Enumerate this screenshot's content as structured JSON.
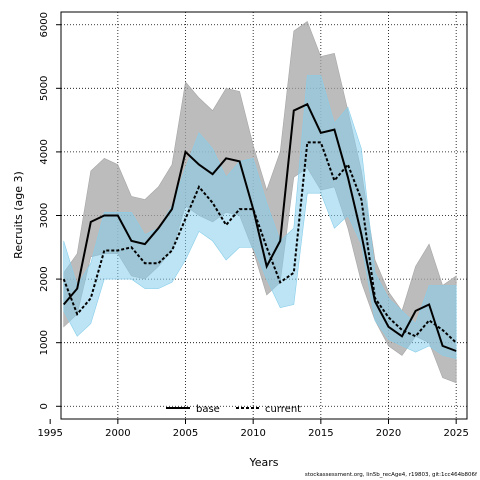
{
  "chart_data": {
    "type": "line",
    "xlabel": "Years",
    "ylabel": "Recruits (age 3)",
    "xlim": [
      1995.8,
      2025.8
    ],
    "ylim": [
      -200,
      6200
    ],
    "xticks": [
      1995,
      2000,
      2005,
      2010,
      2015,
      2020,
      2025
    ],
    "yticks": [
      0,
      1000,
      2000,
      3000,
      4000,
      5000,
      6000
    ],
    "grid": true,
    "legend_position": "bottom-center",
    "x": [
      1996,
      1997,
      1998,
      1999,
      2000,
      2001,
      2002,
      2003,
      2004,
      2005,
      2006,
      2007,
      2008,
      2009,
      2010,
      2011,
      2012,
      2013,
      2014,
      2015,
      2016,
      2017,
      2018,
      2019,
      2020,
      2021,
      2022,
      2023,
      2024,
      2025
    ],
    "series": [
      {
        "name": "base",
        "color": "#000000",
        "band_color": "#a6a6a6",
        "values": [
          1600,
          1850,
          2900,
          3000,
          3000,
          2600,
          2550,
          2800,
          3100,
          4000,
          3800,
          3650,
          3900,
          3850,
          3100,
          2200,
          2600,
          4650,
          4750,
          4300,
          4350,
          3600,
          2700,
          1650,
          1250,
          1100,
          1500,
          1600,
          950,
          870
        ],
        "upper": [
          2100,
          2400,
          3700,
          3900,
          3800,
          3300,
          3250,
          3450,
          3800,
          5100,
          4850,
          4650,
          5000,
          4950,
          4100,
          3400,
          4000,
          5900,
          6050,
          5500,
          5550,
          4650,
          3700,
          2300,
          1800,
          1500,
          2200,
          2550,
          1900,
          2050
        ],
        "lower": [
          1250,
          1450,
          2350,
          2400,
          2400,
          2050,
          2000,
          2200,
          2450,
          3150,
          3000,
          2900,
          3050,
          3000,
          2450,
          1750,
          1950,
          3600,
          3750,
          3400,
          3450,
          2800,
          1950,
          1350,
          950,
          800,
          1100,
          1000,
          450,
          370
        ]
      },
      {
        "name": "current",
        "color": "#000000",
        "band_color": "#87ceeb",
        "values": [
          2000,
          1450,
          1700,
          2450,
          2450,
          2500,
          2250,
          2250,
          2450,
          2950,
          3450,
          3200,
          2850,
          3100,
          3100,
          2500,
          1950,
          2100,
          4150,
          4150,
          3550,
          3800,
          3250,
          1700,
          1400,
          1200,
          1100,
          1350,
          1200,
          1000
        ],
        "upper": [
          2600,
          1900,
          2250,
          3050,
          3050,
          3050,
          2700,
          2800,
          3150,
          3750,
          4300,
          4050,
          3600,
          3850,
          3900,
          3200,
          2600,
          2800,
          5200,
          5200,
          4450,
          4700,
          4050,
          2100,
          1700,
          1500,
          1300,
          1900,
          1900,
          1900
        ],
        "lower": [
          1500,
          1100,
          1300,
          2000,
          2000,
          2000,
          1850,
          1850,
          1950,
          2300,
          2750,
          2600,
          2300,
          2500,
          2500,
          2000,
          1550,
          1600,
          3350,
          3350,
          2800,
          3000,
          2550,
          1350,
          1050,
          950,
          850,
          950,
          800,
          750
        ]
      }
    ]
  },
  "footer": {
    "text": "stockassessment.org, lin5b_recAge4, r19803, git:1cc464b806f"
  }
}
